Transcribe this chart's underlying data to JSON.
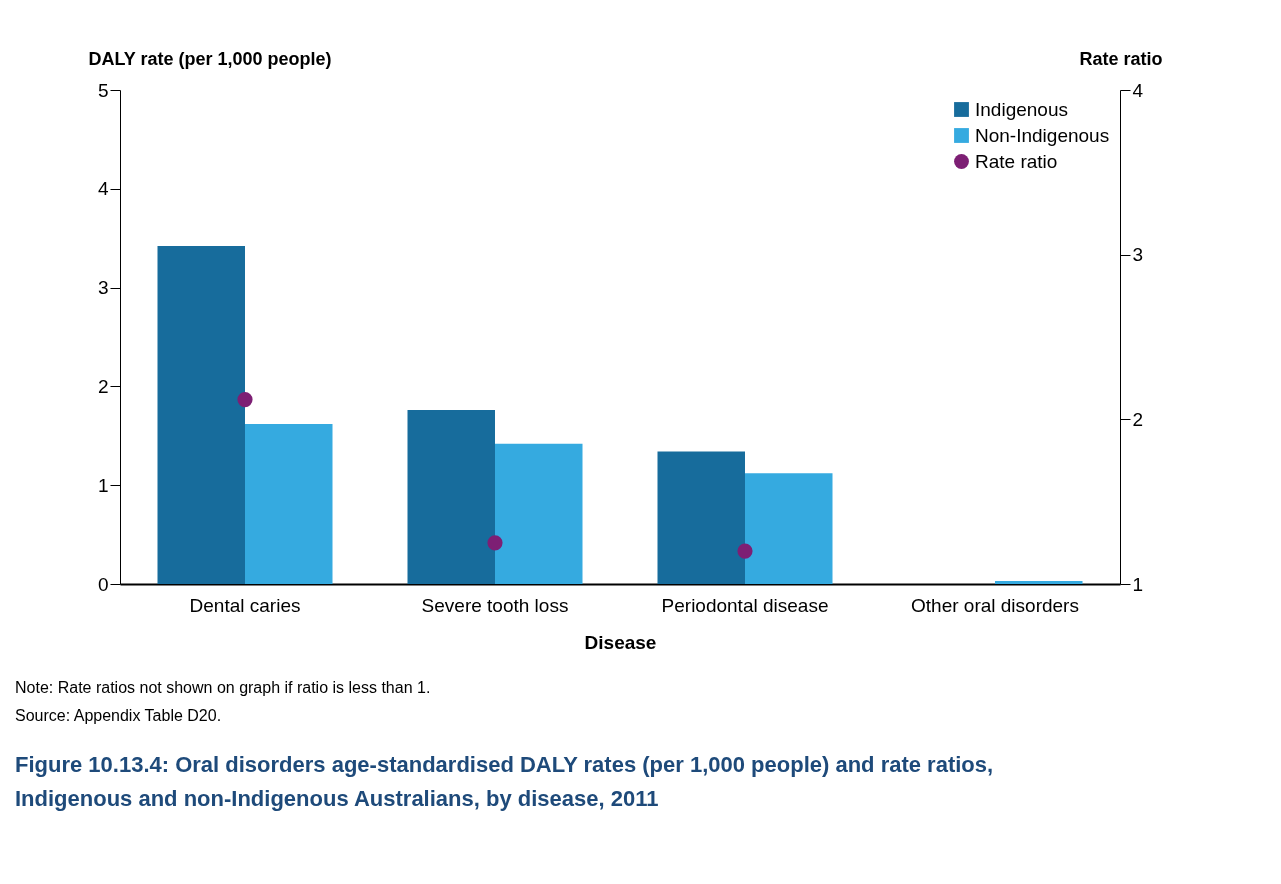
{
  "chart_data": {
    "type": "bar",
    "title": "Figure 10.13.4: Oral disorders age-standardised DALY rates (per 1,000 people) and rate ratios, Indigenous and non-Indigenous Australians, by disease, 2011",
    "xlabel": "Disease",
    "ylabel": "DALY rate (per 1,000 people)",
    "y2label": "Rate ratio",
    "categories": [
      "Dental caries",
      "Severe tooth loss",
      "Periodontal disease",
      "Other oral disorders"
    ],
    "series": [
      {
        "name": "Indigenous",
        "color": "#176c9c",
        "values": [
          3.42,
          1.76,
          1.34,
          0
        ]
      },
      {
        "name": "Non-Indigenous",
        "color": "#35aae0",
        "values": [
          1.62,
          1.42,
          1.12,
          0.03
        ]
      },
      {
        "name": "Rate ratio",
        "color": "#7d1f74",
        "type": "scatter",
        "axis": "y2",
        "values": [
          2.12,
          1.25,
          1.2,
          null
        ]
      }
    ],
    "ylim": [
      0,
      5
    ],
    "yticks": [
      0,
      1,
      2,
      3,
      4,
      5
    ],
    "y2lim": [
      1,
      4
    ],
    "y2ticks": [
      1,
      2,
      3,
      4
    ],
    "grid": false,
    "legend": "top right",
    "marker": "circle",
    "annotations": [
      "Note: Rate ratios not shown on graph if ratio is less than 1.",
      "Source: Appendix Table D20."
    ]
  }
}
